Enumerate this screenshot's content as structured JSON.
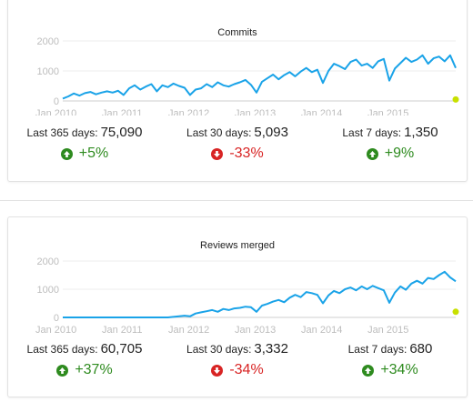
{
  "colors": {
    "line": "#1aa3e8",
    "endpoint": "#c8e000",
    "up": "#2e8b1f",
    "down": "#d82424",
    "tick": "#bdbdbd"
  },
  "panels": [
    {
      "id": "commits",
      "stats": [
        {
          "label": "Last 365 days:",
          "value": "75,090",
          "change": "+5%",
          "direction": "up",
          "icon": "arrow-up-circle-icon"
        },
        {
          "label": "Last 30 days:",
          "value": "5,093",
          "change": "-33%",
          "direction": "down",
          "icon": "arrow-down-circle-icon"
        },
        {
          "label": "Last 7 days:",
          "value": "1,350",
          "change": "+9%",
          "direction": "up",
          "icon": "arrow-up-circle-icon"
        }
      ]
    },
    {
      "id": "reviews",
      "stats": [
        {
          "label": "Last 365 days:",
          "value": "60,705",
          "change": "+37%",
          "direction": "up",
          "icon": "arrow-up-circle-icon"
        },
        {
          "label": "Last 30 days:",
          "value": "3,332",
          "change": "-34%",
          "direction": "down",
          "icon": "arrow-down-circle-icon"
        },
        {
          "label": "Last 7 days:",
          "value": "680",
          "change": "+34%",
          "direction": "up",
          "icon": "arrow-up-circle-icon"
        }
      ]
    }
  ],
  "chart_data": [
    {
      "type": "line",
      "title": "Commits",
      "xlabel": "",
      "ylabel": "",
      "ylim": [
        0,
        2000
      ],
      "yticks": [
        0,
        1000,
        2000
      ],
      "xticks": [
        "Jan 2010",
        "Jan 2011",
        "Jan 2012",
        "Jan 2013",
        "Jan 2014",
        "Jan 2015"
      ],
      "xlim": [
        "2010-01",
        "2015-12"
      ],
      "grid": true,
      "legend": "none",
      "series": [
        {
          "x": [
            "2010-01",
            "2010-02",
            "2010-03",
            "2010-04",
            "2010-05",
            "2010-06",
            "2010-07",
            "2010-08",
            "2010-09",
            "2010-10",
            "2010-11",
            "2010-12",
            "2011-01",
            "2011-02",
            "2011-03",
            "2011-04",
            "2011-05",
            "2011-06",
            "2011-07",
            "2011-08",
            "2011-09",
            "2011-10",
            "2011-11",
            "2011-12",
            "2012-01",
            "2012-02",
            "2012-03",
            "2012-04",
            "2012-05",
            "2012-06",
            "2012-07",
            "2012-08",
            "2012-09",
            "2012-10",
            "2012-11",
            "2012-12",
            "2013-01",
            "2013-02",
            "2013-03",
            "2013-04",
            "2013-05",
            "2013-06",
            "2013-07",
            "2013-08",
            "2013-09",
            "2013-10",
            "2013-11",
            "2013-12",
            "2014-01",
            "2014-02",
            "2014-03",
            "2014-04",
            "2014-05",
            "2014-06",
            "2014-07",
            "2014-08",
            "2014-09",
            "2014-10",
            "2014-11",
            "2014-12",
            "2015-01",
            "2015-02",
            "2015-03",
            "2015-04",
            "2015-05",
            "2015-06",
            "2015-07",
            "2015-08",
            "2015-09",
            "2015-10",
            "2015-11",
            "2015-12"
          ],
          "values": [
            80,
            150,
            250,
            180,
            260,
            300,
            220,
            280,
            320,
            280,
            340,
            200,
            420,
            520,
            380,
            480,
            560,
            320,
            520,
            460,
            580,
            500,
            440,
            200,
            380,
            420,
            560,
            460,
            620,
            520,
            480,
            560,
            620,
            700,
            540,
            280,
            640,
            760,
            880,
            720,
            860,
            960,
            820,
            980,
            1100,
            960,
            1040,
            600,
            1000,
            1240,
            1160,
            1060,
            1300,
            1380,
            1180,
            1240,
            1100,
            1320,
            1400,
            680,
            1080,
            1260,
            1440,
            1300,
            1380,
            1520,
            1240,
            1420,
            1480,
            1320,
            1520,
            1100
          ]
        }
      ],
      "endpoint": {
        "x": "2015-12",
        "y": 50
      }
    },
    {
      "type": "line",
      "title": "Reviews merged",
      "xlabel": "",
      "ylabel": "",
      "ylim": [
        0,
        2000
      ],
      "yticks": [
        0,
        1000,
        2000
      ],
      "xticks": [
        "Jan 2010",
        "Jan 2011",
        "Jan 2012",
        "Jan 2013",
        "Jan 2014",
        "Jan 2015"
      ],
      "xlim": [
        "2010-01",
        "2015-12"
      ],
      "grid": true,
      "legend": "none",
      "series": [
        {
          "x": [
            "2010-01",
            "2010-02",
            "2010-03",
            "2010-04",
            "2010-05",
            "2010-06",
            "2010-07",
            "2010-08",
            "2010-09",
            "2010-10",
            "2010-11",
            "2010-12",
            "2011-01",
            "2011-02",
            "2011-03",
            "2011-04",
            "2011-05",
            "2011-06",
            "2011-07",
            "2011-08",
            "2011-09",
            "2011-10",
            "2011-11",
            "2011-12",
            "2012-01",
            "2012-02",
            "2012-03",
            "2012-04",
            "2012-05",
            "2012-06",
            "2012-07",
            "2012-08",
            "2012-09",
            "2012-10",
            "2012-11",
            "2012-12",
            "2013-01",
            "2013-02",
            "2013-03",
            "2013-04",
            "2013-05",
            "2013-06",
            "2013-07",
            "2013-08",
            "2013-09",
            "2013-10",
            "2013-11",
            "2013-12",
            "2014-01",
            "2014-02",
            "2014-03",
            "2014-04",
            "2014-05",
            "2014-06",
            "2014-07",
            "2014-08",
            "2014-09",
            "2014-10",
            "2014-11",
            "2014-12",
            "2015-01",
            "2015-02",
            "2015-03",
            "2015-04",
            "2015-05",
            "2015-06",
            "2015-07",
            "2015-08",
            "2015-09",
            "2015-10",
            "2015-11",
            "2015-12"
          ],
          "values": [
            0,
            0,
            0,
            0,
            0,
            0,
            0,
            0,
            0,
            0,
            0,
            0,
            0,
            0,
            0,
            0,
            0,
            0,
            0,
            0,
            20,
            40,
            60,
            40,
            140,
            180,
            220,
            260,
            200,
            300,
            260,
            320,
            340,
            380,
            360,
            200,
            420,
            480,
            560,
            620,
            540,
            700,
            800,
            720,
            900,
            860,
            800,
            500,
            780,
            940,
            860,
            1000,
            1060,
            960,
            1100,
            1000,
            1120,
            1040,
            960,
            520,
            880,
            1100,
            980,
            1200,
            1300,
            1200,
            1400,
            1360,
            1500,
            1620,
            1420,
            1280
          ]
        }
      ],
      "endpoint": {
        "x": "2015-12",
        "y": 200
      }
    }
  ]
}
